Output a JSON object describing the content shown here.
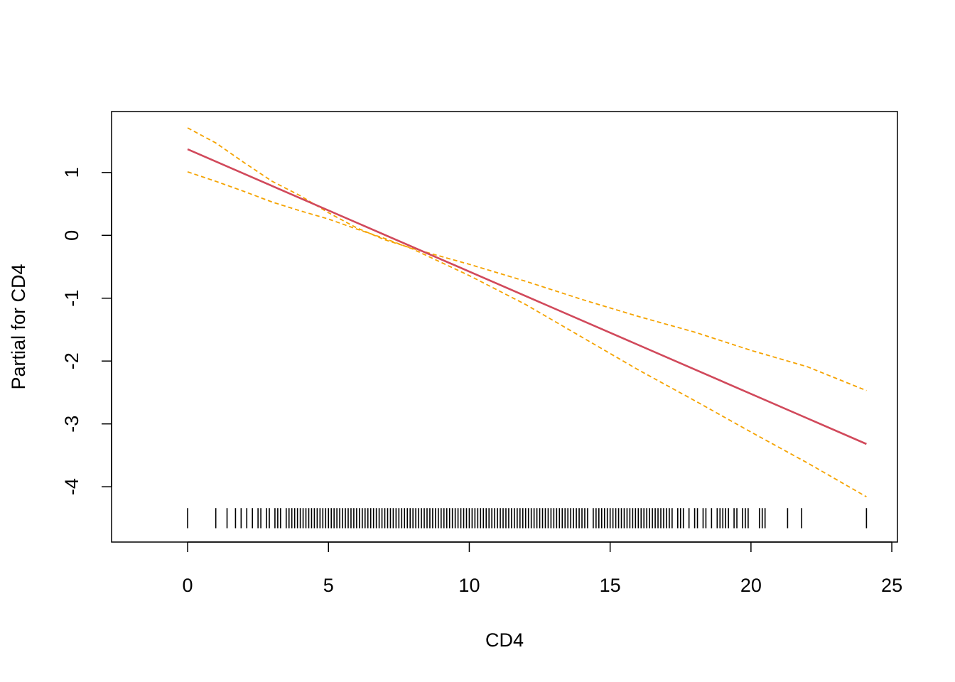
{
  "chart_data": {
    "type": "line",
    "title": "",
    "xlabel": "CD4",
    "ylabel": "Partial for CD4",
    "xlim": [
      -2.7,
      25.2
    ],
    "ylim": [
      -4.88,
      1.97
    ],
    "x_ticks": [
      0,
      5,
      10,
      15,
      20,
      25
    ],
    "y_ticks": [
      1,
      0,
      -1,
      -2,
      -3,
      -4
    ],
    "grid": false,
    "legend": "none",
    "colors": {
      "fit": "#d1495b",
      "band": "#f5a300",
      "rug": "#000000",
      "frame": "#000000"
    },
    "series": [
      {
        "role": "fit",
        "style": "solid",
        "x": [
          0,
          24.1
        ],
        "y": [
          1.37,
          -3.32
        ]
      },
      {
        "role": "upper-band",
        "style": "dashed",
        "x": [
          0,
          1,
          2,
          3,
          4,
          5,
          6,
          7,
          8,
          10,
          12,
          14,
          16,
          18,
          20,
          22,
          24.1
        ],
        "y": [
          1.71,
          1.47,
          1.16,
          0.86,
          0.63,
          0.36,
          0.12,
          -0.07,
          -0.21,
          -0.46,
          -0.73,
          -1.02,
          -1.29,
          -1.54,
          -1.83,
          -2.09,
          -2.47
        ]
      },
      {
        "role": "lower-band",
        "style": "dashed",
        "x": [
          0,
          1,
          2,
          3,
          4,
          5,
          6,
          7,
          8,
          10,
          12,
          14,
          16,
          18,
          20,
          22,
          24.1
        ],
        "y": [
          1.01,
          0.86,
          0.7,
          0.53,
          0.39,
          0.26,
          0.1,
          -0.05,
          -0.22,
          -0.64,
          -1.1,
          -1.62,
          -2.14,
          -2.63,
          -3.13,
          -3.62,
          -4.16
        ]
      }
    ],
    "rug": {
      "y": -4.5,
      "length": 0.32,
      "x": [
        0,
        1,
        1.4,
        1.7,
        1.9,
        2.1,
        2.3,
        2.5,
        2.6,
        2.8,
        2.9,
        3.1,
        3.2,
        3.3,
        3.5,
        3.6,
        3.7,
        3.8,
        3.9,
        4.0,
        4.1,
        4.2,
        4.3,
        4.4,
        4.5,
        4.6,
        4.7,
        4.8,
        4.9,
        5.0,
        5.1,
        5.2,
        5.3,
        5.4,
        5.5,
        5.6,
        5.7,
        5.8,
        5.9,
        6.0,
        6.1,
        6.2,
        6.3,
        6.4,
        6.5,
        6.6,
        6.7,
        6.8,
        6.9,
        7.0,
        7.1,
        7.2,
        7.3,
        7.4,
        7.5,
        7.6,
        7.7,
        7.8,
        7.9,
        8.0,
        8.1,
        8.2,
        8.3,
        8.4,
        8.5,
        8.6,
        8.7,
        8.8,
        8.9,
        9.0,
        9.1,
        9.2,
        9.3,
        9.4,
        9.5,
        9.6,
        9.7,
        9.8,
        9.9,
        10.0,
        10.1,
        10.2,
        10.3,
        10.4,
        10.5,
        10.6,
        10.7,
        10.8,
        10.9,
        11.0,
        11.1,
        11.2,
        11.3,
        11.4,
        11.5,
        11.6,
        11.7,
        11.8,
        11.9,
        12.0,
        12.1,
        12.2,
        12.3,
        12.4,
        12.5,
        12.6,
        12.7,
        12.8,
        12.9,
        13.0,
        13.1,
        13.2,
        13.3,
        13.4,
        13.5,
        13.6,
        13.7,
        13.8,
        13.9,
        14.0,
        14.1,
        14.2,
        14.4,
        14.5,
        14.6,
        14.7,
        14.8,
        14.9,
        15.0,
        15.1,
        15.2,
        15.3,
        15.4,
        15.5,
        15.6,
        15.7,
        15.8,
        15.9,
        16.0,
        16.1,
        16.2,
        16.3,
        16.4,
        16.5,
        16.6,
        16.7,
        16.8,
        16.9,
        17.0,
        17.1,
        17.2,
        17.4,
        17.5,
        17.6,
        17.8,
        18.0,
        18.1,
        18.3,
        18.4,
        18.6,
        18.8,
        18.9,
        19.0,
        19.1,
        19.2,
        19.4,
        19.5,
        19.7,
        19.8,
        19.9,
        20.3,
        20.4,
        20.5,
        21.3,
        21.8,
        24.1
      ]
    }
  }
}
